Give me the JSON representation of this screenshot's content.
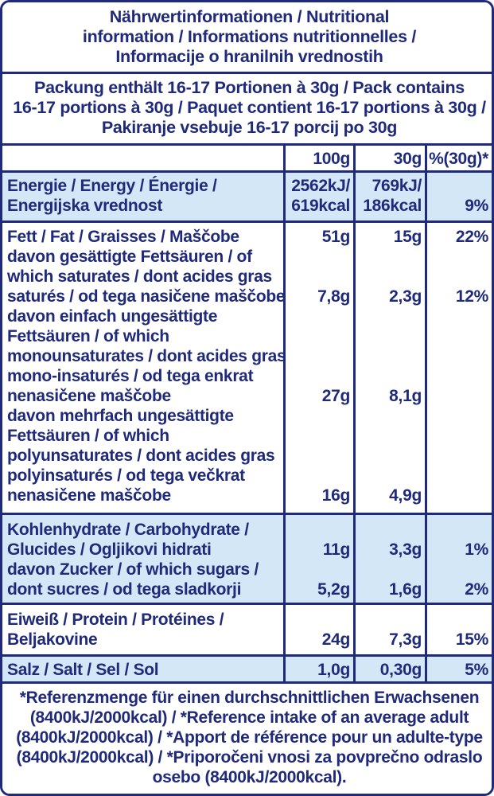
{
  "title": [
    "Nährwertinformationen / Nutritional",
    "information / Informations nutritionnelles /",
    "Informacije o hranilnih vrednostih"
  ],
  "pack": [
    "Packung enthält 16-17 Portionen à 30g / Pack contains",
    "16-17 portions à 30g / Paquet contient 16-17 portions à 30g /",
    "Pakiranje vsebuje 16-17 porcij po 30g"
  ],
  "header": {
    "col100": "100g",
    "col30": "30g",
    "colpct": "%(30g)*"
  },
  "energy": {
    "name": [
      "Energie / Energy / Énergie /",
      "Energijska vrednost"
    ],
    "v100": [
      "2562kJ/",
      "619kcal"
    ],
    "v30": [
      "769kJ/",
      "186kcal"
    ],
    "pct": "9%"
  },
  "fat": {
    "name": [
      "Fett / Fat / Graisses / Maščobe",
      "davon gesättigte Fettsäuren / of",
      "which saturates / dont acides gras",
      "saturés / od tega nasičene maščobe",
      "davon einfach ungesättigte",
      "Fettsäuren / of which",
      "monounsaturates / dont acides gras",
      "mono-insaturés / od tega enkrat",
      "nenasičene maščobe",
      "davon mehrfach ungesättigte",
      "Fettsäuren / of which",
      "polyunsaturates / dont acides gras",
      "polyinsaturés / od tega večkrat",
      "nenasičene maščobe"
    ],
    "total": {
      "v100": "51g",
      "v30": "15g",
      "pct": "22%"
    },
    "saturates": {
      "v100": "7,8g",
      "v30": "2,3g",
      "pct": "12%"
    },
    "mono": {
      "v100": "27g",
      "v30": "8,1g"
    },
    "poly": {
      "v100": "16g",
      "v30": "4,9g"
    }
  },
  "carbs": {
    "name": [
      "Kohlenhydrate / Carbohydrate /",
      "Glucides / Ogljikovi hidrati",
      "davon Zucker / of which sugars /",
      "dont sucres / od tega sladkorji"
    ],
    "total": {
      "v100": "11g",
      "v30": "3,3g",
      "pct": "1%"
    },
    "sugars": {
      "v100": "5,2g",
      "v30": "1,6g",
      "pct": "2%"
    }
  },
  "protein": {
    "name": [
      "Eiweiß / Protein / Protéines /",
      "Beljakovine"
    ],
    "v100": "24g",
    "v30": "7,3g",
    "pct": "15%"
  },
  "salt": {
    "name": "Salz / Salt / Sel / Sol",
    "v100": "1,0g",
    "v30": "0,30g",
    "pct": "5%"
  },
  "footnote": [
    "*Referenzmenge für einen durchschnittlichen Erwachsenen",
    "(8400kJ/2000kcal) / *Reference intake of an average adult",
    "(8400kJ/2000kcal) / *Apport de référence pour un adulte-type",
    "(8400kJ/2000kcal) / *Priporočeni vnosi za povprečno odraslo",
    "osebo (8400kJ/2000kcal)."
  ],
  "colors": {
    "ink": "#1f2a7a",
    "shade": "#d3e7f7"
  }
}
